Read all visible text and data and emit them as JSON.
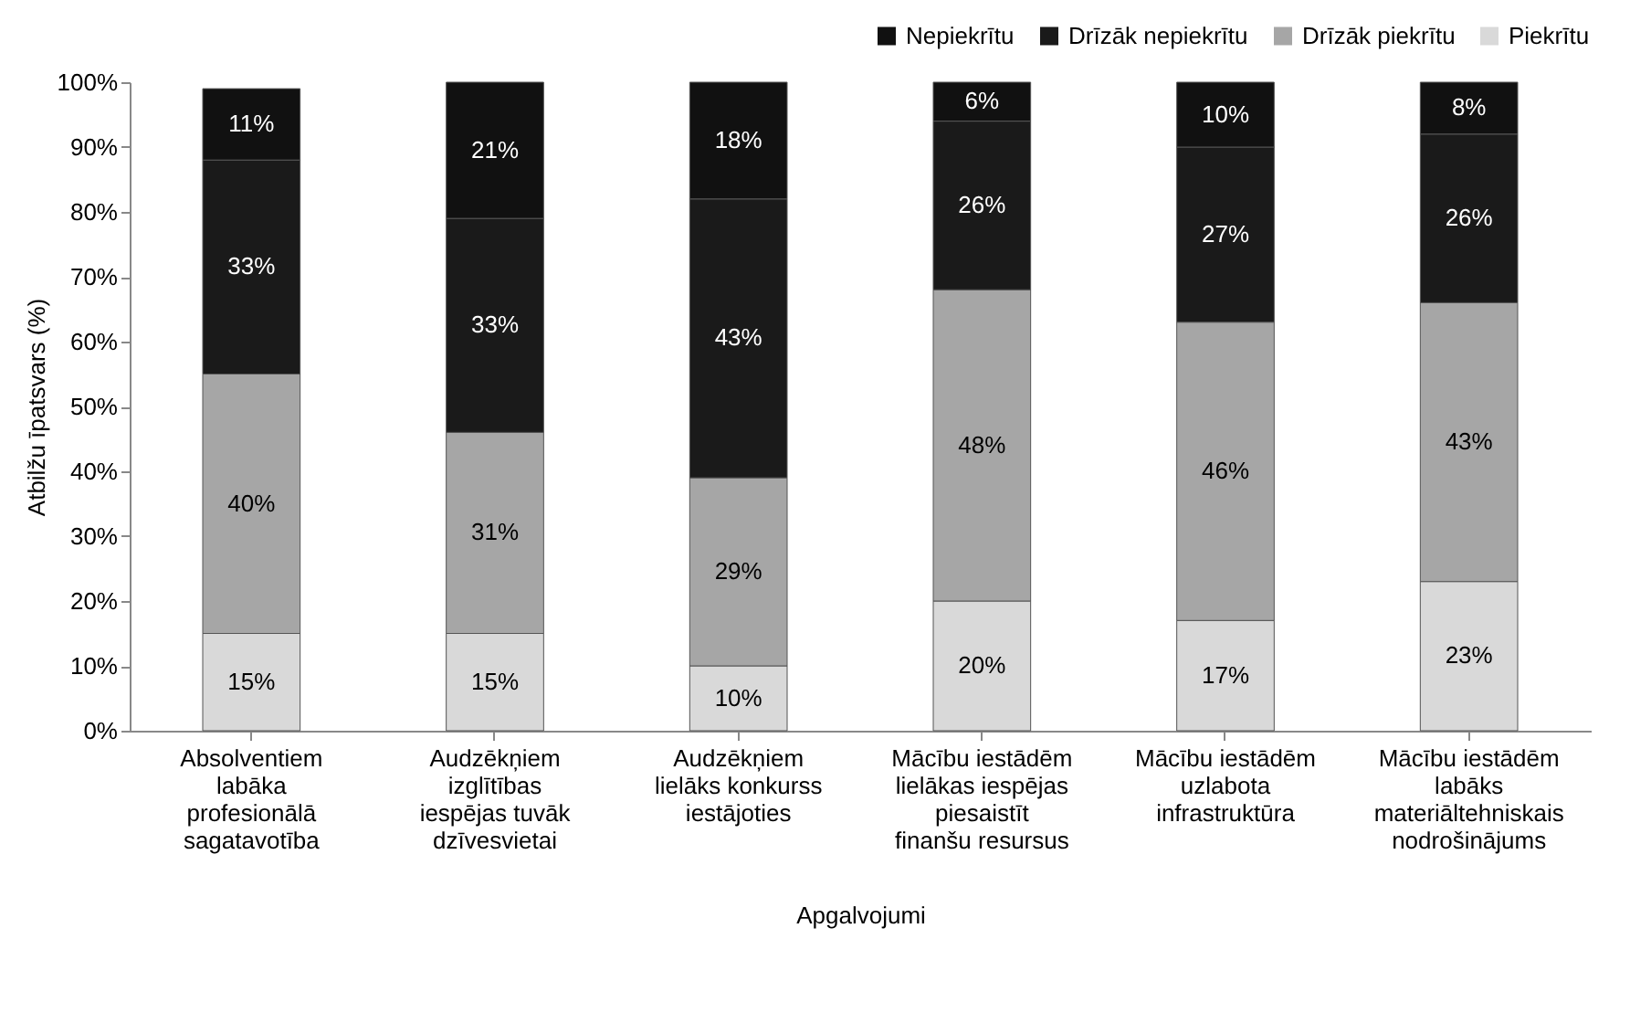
{
  "chart_data": {
    "type": "bar",
    "stacked": true,
    "xlabel": "Apgalvojumi",
    "ylabel": "Atbilžu īpatsvars (%)",
    "categories": [
      "Absolventiem labāka profesionālā sagatavotība",
      "Audzēkņiem izglītības iespējas tuvāk dzīvesvietai",
      "Audzēkņiem lielāks konkurss iestājoties",
      "Mācību iestādēm lielākas iespējas piesaistīt finanšu resursus",
      "Mācību iestādēm uzlabota infrastruktūra",
      "Mācību iestādēm labāks materiāltehniskais nodrošinājums"
    ],
    "series": [
      {
        "name": "Piekrītu",
        "color": "#d9d9d9",
        "values": [
          15,
          15,
          10,
          20,
          17,
          23
        ],
        "value_labels": [
          "15%",
          "15%",
          "10%",
          "20%",
          "17%",
          "23%"
        ]
      },
      {
        "name": "Drīzāk piekrītu",
        "color": "#a6a6a6",
        "values": [
          40,
          31,
          29,
          48,
          46,
          43
        ],
        "value_labels": [
          "40%",
          "31%",
          "29%",
          "48%",
          "46%",
          "43%"
        ]
      },
      {
        "name": "Drīzāk nepiekrītu",
        "color": "#1a1a1a",
        "values": [
          33,
          33,
          43,
          26,
          27,
          26
        ],
        "value_labels": [
          "33%",
          "33%",
          "43%",
          "26%",
          "27%",
          "26%"
        ]
      },
      {
        "name": "Nepiekrītu",
        "color": "#111111",
        "values": [
          11,
          21,
          18,
          6,
          10,
          8
        ],
        "value_labels": [
          "11%",
          "21%",
          "18%",
          "6%",
          "10%",
          "8%"
        ]
      }
    ],
    "ylim": [
      0,
      100
    ],
    "yticks": [
      {
        "value": 0,
        "label": "0%"
      },
      {
        "value": 10,
        "label": "10%"
      },
      {
        "value": 20,
        "label": "20%"
      },
      {
        "value": 30,
        "label": "30%"
      },
      {
        "value": 40,
        "label": "40%"
      },
      {
        "value": 50,
        "label": "50%"
      },
      {
        "value": 60,
        "label": "60%"
      },
      {
        "value": 70,
        "label": "70%"
      },
      {
        "value": 80,
        "label": "80%"
      },
      {
        "value": 90,
        "label": "90%"
      },
      {
        "value": 100,
        "label": "100%"
      }
    ],
    "legend": "top right",
    "grid": false
  }
}
